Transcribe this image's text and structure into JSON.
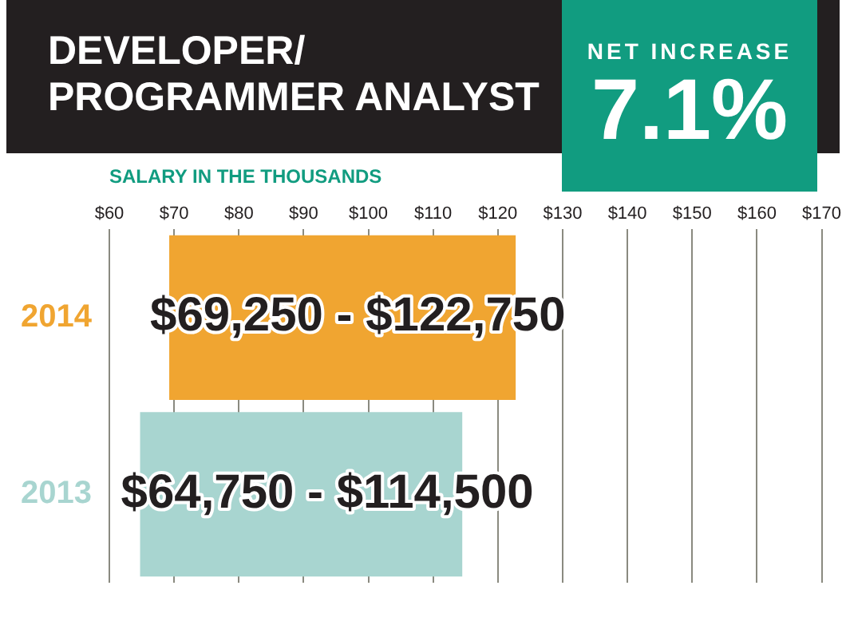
{
  "chart_data": {
    "type": "bar",
    "orientation": "horizontal",
    "title": "DEVELOPER/ PROGRAMMER ANALYST",
    "xlabel": "SALARY IN THE THOUSANDS",
    "categories": [
      "2014",
      "2013"
    ],
    "base": [
      69.25,
      64.75
    ],
    "values": [
      53.5,
      49.75
    ],
    "colors": [
      "#f0a531",
      "#a8d5d0"
    ],
    "xlim": [
      60,
      170
    ],
    "xticks": [
      {
        "value": 60,
        "label": "$60"
      },
      {
        "value": 70,
        "label": "$70"
      },
      {
        "value": 80,
        "label": "$80"
      },
      {
        "value": 90,
        "label": "$90"
      },
      {
        "value": 100,
        "label": "$100"
      },
      {
        "value": 110,
        "label": "$110"
      },
      {
        "value": 120,
        "label": "$120"
      },
      {
        "value": 130,
        "label": "$130"
      },
      {
        "value": 140,
        "label": "$140"
      },
      {
        "value": 150,
        "label": "$150"
      },
      {
        "value": 160,
        "label": "$160"
      },
      {
        "value": 170,
        "label": "$170"
      }
    ],
    "grid": "x",
    "annotations": [
      "NET INCREASE",
      "7.1%",
      {
        "text": "$69,250 - $122,750",
        "x": 69.25,
        "y": "2014"
      },
      {
        "text": "$64,750 - $114,500",
        "x": 64.75,
        "y": "2013"
      }
    ]
  }
}
